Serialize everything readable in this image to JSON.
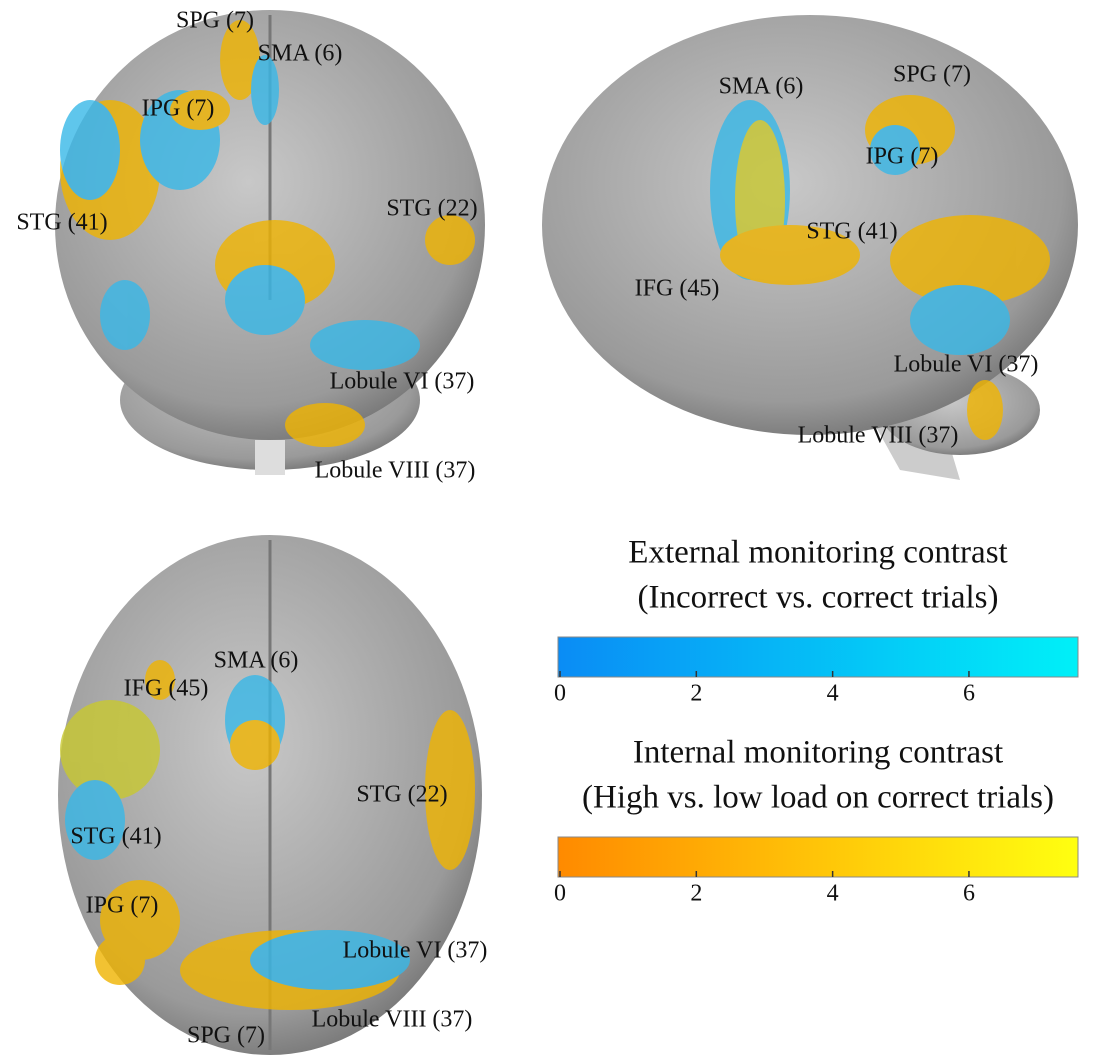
{
  "views": [
    {
      "labels": [
        "SPG (7)",
        "SMA (6)",
        "IPG (7)",
        "STG (41)",
        "STG (22)",
        "Lobule VI (37)",
        "Lobule VIII (37)"
      ]
    },
    {
      "labels": [
        "SMA (6)",
        "SPG (7)",
        "IPG (7)",
        "STG (41)",
        "IFG (45)",
        "Lobule VI (37)",
        "Lobule VIII (37)"
      ]
    },
    {
      "labels": [
        "SMA (6)",
        "IFG (45)",
        "STG (22)",
        "STG (41)",
        "IPG (7)",
        "Lobule VI (37)",
        "SPG (7)",
        "Lobule VIII (37)"
      ]
    }
  ],
  "legend": [
    {
      "title": [
        "External monitoring contrast",
        "(Incorrect vs. correct trials)"
      ],
      "colors": [
        "#0a8cf5",
        "#00f0f8"
      ],
      "range": [
        0,
        7.6
      ],
      "ticks": [
        0,
        2,
        4,
        6
      ]
    },
    {
      "title": [
        "Internal monitoring contrast",
        "(High vs. low load on correct trials)"
      ],
      "colors": [
        "#ff8a00",
        "#ffff10"
      ],
      "range": [
        0,
        7.6
      ],
      "ticks": [
        0,
        2,
        4,
        6
      ]
    }
  ]
}
